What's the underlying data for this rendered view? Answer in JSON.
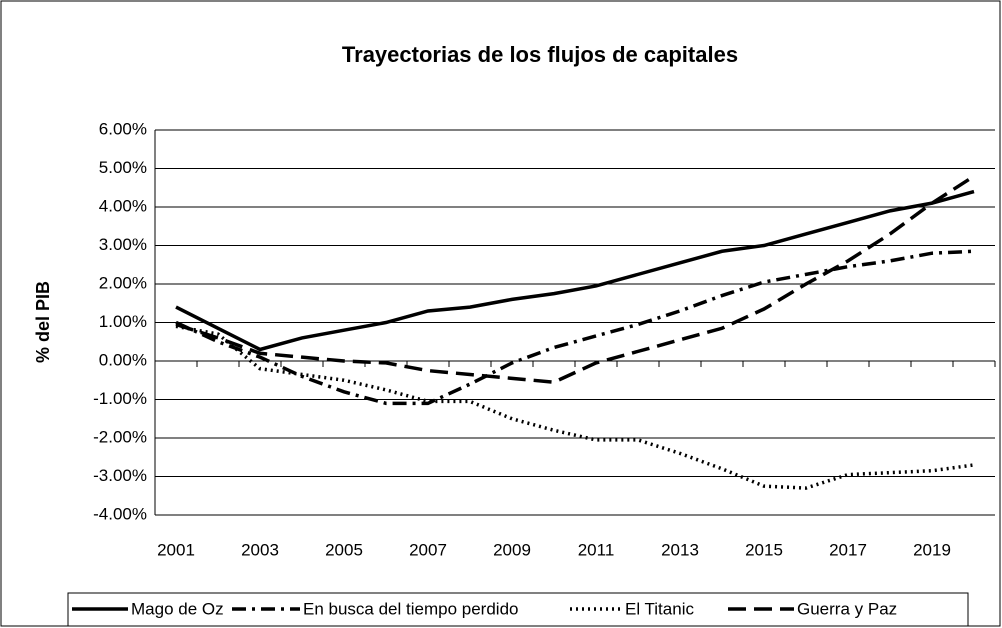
{
  "chart_data": {
    "type": "line",
    "title": "Trayectorias de los flujos de capitales",
    "y_label": "% del PIB",
    "categories": [
      "2001",
      null,
      "2003",
      null,
      "2005",
      null,
      "2007",
      null,
      "2009",
      null,
      "2011",
      null,
      "2013",
      null,
      "2015",
      null,
      "2017",
      null,
      "2019",
      null
    ],
    "ylim": [
      -4,
      6
    ],
    "yticks": [
      {
        "value": 6,
        "label": "6.00%"
      },
      {
        "value": 5,
        "label": "5.00%"
      },
      {
        "value": 4,
        "label": "4.00%"
      },
      {
        "value": 3,
        "label": "3.00%"
      },
      {
        "value": 2,
        "label": "2.00%"
      },
      {
        "value": 1,
        "label": "1.00%"
      },
      {
        "value": 0,
        "label": "0.00%"
      },
      {
        "value": -1,
        "label": "-1.00%"
      },
      {
        "value": -2,
        "label": "-2.00%"
      },
      {
        "value": -3,
        "label": "-3.00%"
      },
      {
        "value": -4,
        "label": "-4.00%"
      }
    ],
    "grid": true,
    "legend": "bottom",
    "series": [
      {
        "name": "Mago de Oz",
        "color": "#000000",
        "dash": "solid",
        "values": [
          1.4,
          0.85,
          0.3,
          0.6,
          0.8,
          1.0,
          1.3,
          1.4,
          1.6,
          1.75,
          1.95,
          2.25,
          2.55,
          2.85,
          3.0,
          3.3,
          3.6,
          3.9,
          4.1,
          4.4
        ]
      },
      {
        "name": "En busca del tiempo perdido",
        "color": "#000000",
        "dash": "dashdot",
        "values": [
          1.0,
          0.5,
          0.1,
          -0.4,
          -0.8,
          -1.1,
          -1.1,
          -0.6,
          -0.05,
          0.35,
          0.65,
          0.95,
          1.3,
          1.7,
          2.05,
          2.25,
          2.45,
          2.6,
          2.8,
          2.85
        ]
      },
      {
        "name": "El Titanic",
        "color": "#000000",
        "dash": "dotted",
        "values": [
          0.9,
          0.7,
          -0.2,
          -0.35,
          -0.5,
          -0.75,
          -1.05,
          -1.05,
          -1.5,
          -1.8,
          -2.05,
          -2.05,
          -2.4,
          -2.8,
          -3.25,
          -3.3,
          -2.95,
          -2.9,
          -2.85,
          -2.7
        ]
      },
      {
        "name": "Guerra y Paz",
        "color": "#000000",
        "dash": "dashed",
        "values": [
          0.95,
          0.6,
          0.2,
          0.1,
          0.0,
          -0.05,
          -0.25,
          -0.35,
          -0.45,
          -0.55,
          -0.05,
          0.25,
          0.55,
          0.85,
          1.35,
          2.0,
          2.6,
          3.3,
          4.1,
          4.8
        ]
      }
    ]
  }
}
